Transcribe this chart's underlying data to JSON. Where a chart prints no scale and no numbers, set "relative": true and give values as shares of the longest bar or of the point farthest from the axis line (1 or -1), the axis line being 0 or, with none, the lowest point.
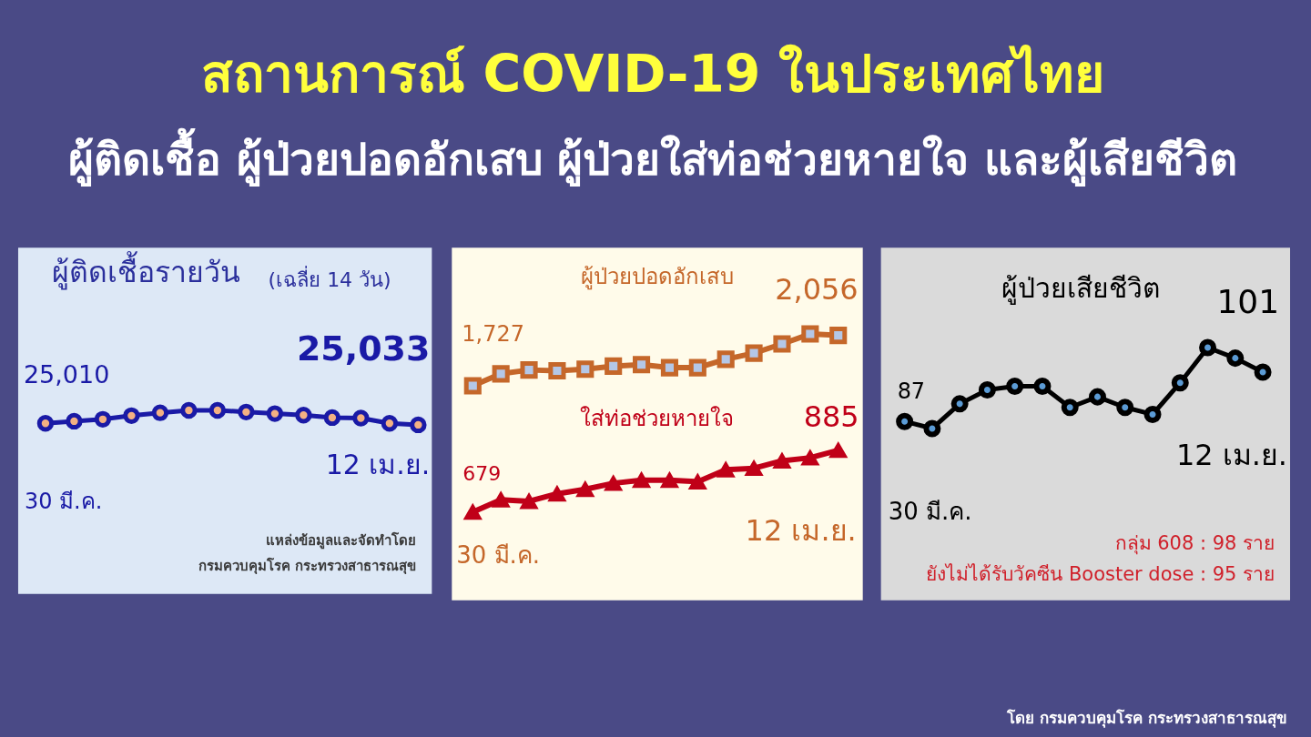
{
  "chart_data": [
    {
      "type": "other",
      "title": "สถานการณ์ COVID-19 ในประเทศไทย",
      "subtitle": "ผู้ติดเชื้อ ผู้ป่วยปอดอักเสบ ผู้ป่วยใส่ท่อช่วยหายใจ และผู้เสียชีวิต"
    },
    {
      "type": "line",
      "title": "ผู้ติดเชื้อรายวัน",
      "subtitle": "(เฉลี่ย 14 วัน)",
      "relative": true,
      "tick_labels": false,
      "marker": "circle",
      "line_style": "solid",
      "categories": [
        null,
        null,
        null,
        null,
        null,
        null,
        null,
        null,
        null,
        null,
        null,
        null,
        null,
        null
      ],
      "series": [
        {
          "color": "#1a1aa6",
          "values": [
            0.1,
            0.25,
            0.38,
            0.63,
            0.83,
            1.0,
            1.0,
            0.88,
            0.77,
            0.67,
            0.5,
            0.46,
            0.1,
            0
          ]
        }
      ],
      "annotations": [
        "25,010",
        "25,033",
        "12 เม.ย.",
        "30 มี.ค.",
        "แหล่งข้อมูลและจัดทำโดย",
        "กรมควบคุมโรค  กระทรวงสาธารณสุข"
      ]
    },
    {
      "type": "line",
      "tick_labels": false,
      "line_style": "solid",
      "marker": "square",
      "categories": [
        null,
        null,
        null,
        null,
        null,
        null,
        null,
        null,
        null,
        null,
        null,
        null,
        null,
        null
      ],
      "series": [
        {
          "name": "ผู้ป่วยปอดอักเสบ",
          "color": "#c5672a",
          "values": [
            1727,
            1805,
            1830,
            1825,
            1835,
            1855,
            1865,
            1845,
            1845,
            1900,
            1940,
            2000,
            2065,
            2056
          ],
          "value_labels": [
            "1,727",
            null,
            null,
            null,
            null,
            null,
            null,
            null,
            null,
            null,
            null,
            null,
            null,
            "2,056"
          ]
        }
      ]
    },
    {
      "type": "line",
      "tick_labels": false,
      "line_style": "solid",
      "marker": "triangle",
      "categories": [
        null,
        null,
        null,
        null,
        null,
        null,
        null,
        null,
        null,
        null,
        null,
        null,
        null,
        null
      ],
      "series": [
        {
          "name": "ใส่ท่อช่วยหายใจ",
          "color": "#c00018",
          "values": [
            679,
            720,
            715,
            740,
            755,
            775,
            785,
            785,
            780,
            820,
            825,
            850,
            860,
            885
          ],
          "value_labels": [
            "679",
            null,
            null,
            null,
            null,
            null,
            null,
            null,
            null,
            null,
            null,
            null,
            null,
            "885"
          ]
        }
      ],
      "annotations": [
        "12 เม.ย.",
        "30 มี.ค."
      ]
    },
    {
      "type": "line",
      "title": "ผู้ป่วยเสียชีวิต",
      "tick_labels": false,
      "marker": "circle",
      "line_style": "solid",
      "categories": [
        null,
        null,
        null,
        null,
        null,
        null,
        null,
        null,
        null,
        null,
        null,
        null,
        null,
        null
      ],
      "series": [
        {
          "color": "#000000",
          "values": [
            87,
            85,
            92,
            96,
            97,
            97,
            91,
            94,
            91,
            89,
            98,
            108,
            105,
            101
          ],
          "value_labels": [
            "87",
            null,
            null,
            null,
            null,
            null,
            null,
            null,
            null,
            null,
            null,
            null,
            null,
            "101"
          ]
        }
      ],
      "annotations": [
        "12 เม.ย.",
        "30 มี.ค.",
        "กลุ่ม 608 : 98 ราย",
        "ยังไม่ได้รับวัคซีน Booster dose : 95 ราย"
      ]
    },
    {
      "type": "other",
      "annotations": [
        "โดย กรมควบคุมโรค กระทรวงสาธารณสุข"
      ]
    }
  ]
}
